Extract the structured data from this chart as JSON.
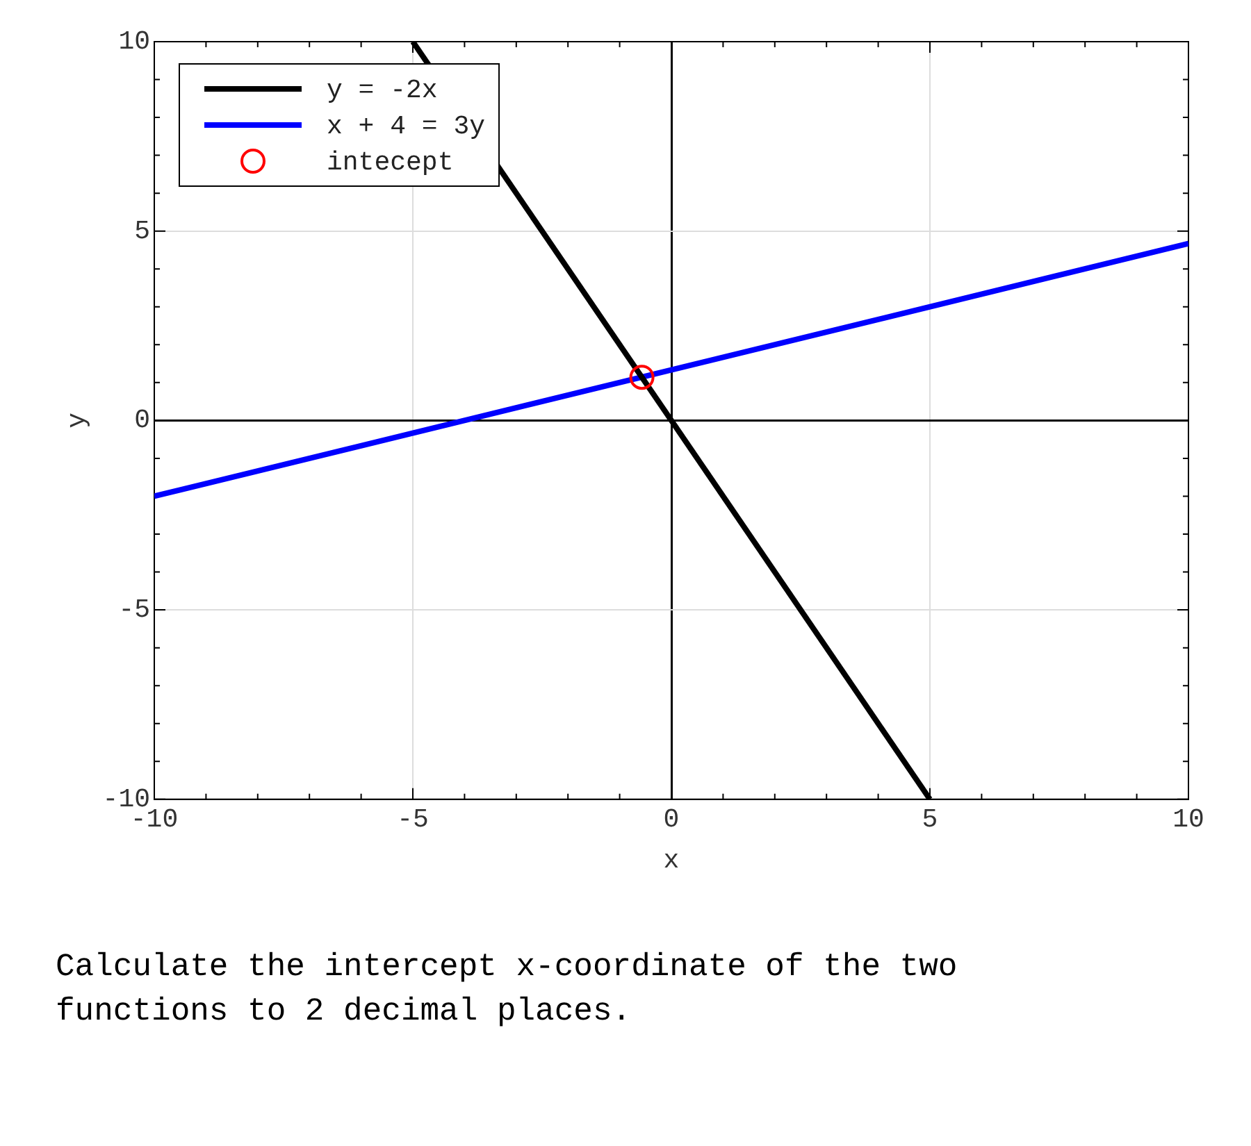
{
  "chart_data": {
    "type": "line",
    "xlabel": "x",
    "ylabel": "y",
    "xlim": [
      -10,
      10
    ],
    "xticks": [
      -10,
      -5,
      0,
      5,
      10
    ],
    "ylim": [
      -10,
      10
    ],
    "yticks": [
      -10,
      -5,
      0,
      5,
      10
    ],
    "grid": true,
    "legend": "top left",
    "series": [
      {
        "name": "y = -2x",
        "color": "#000000",
        "x": [
          -5,
          5
        ],
        "values": [
          10,
          -10
        ],
        "marker": "none"
      },
      {
        "name": "x + 4 = 3y",
        "color": "#0000ff",
        "x": [
          -10,
          10
        ],
        "values": [
          -2,
          4.67
        ],
        "marker": "none"
      },
      {
        "name": "intecept",
        "type": "scatter",
        "color": "#ff0000",
        "x": [
          -0.57
        ],
        "values": [
          1.14
        ],
        "marker": "circle"
      }
    ],
    "annotations": [
      "Calculate the intercept x-coordinate of the two functions to 2 decimal places."
    ]
  }
}
